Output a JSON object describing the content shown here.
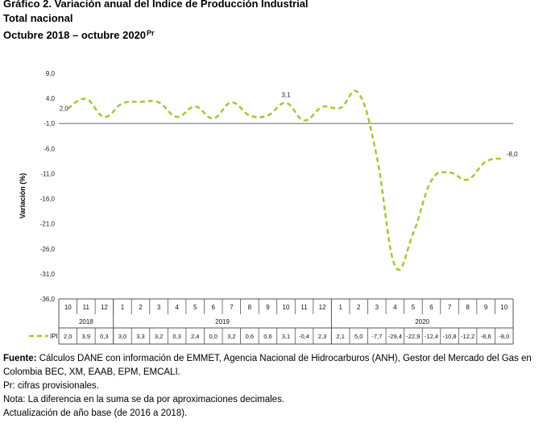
{
  "header": {
    "title": "Gráfico 2. Variación anual del Índice de Producción Industrial",
    "subtitle": "Total nacional",
    "period": "Octubre 2018 – octubre 2020",
    "period_sup": "Pr"
  },
  "chart_data": {
    "type": "line",
    "ylabel": "Variación (%)",
    "ylim": [
      -36.0,
      9.0
    ],
    "yticks": [
      "9,0",
      "4,0",
      "-1,0",
      "-6,0",
      "-11,0",
      "-16,0",
      "-21,0",
      "-26,0",
      "-31,0",
      "-36,0"
    ],
    "ytick_values": [
      9,
      4,
      -1,
      -6,
      -11,
      -16,
      -21,
      -26,
      -31,
      -36
    ],
    "baseline_value": -1.0,
    "categories": [
      "10",
      "11",
      "12",
      "1",
      "2",
      "3",
      "4",
      "5",
      "6",
      "7",
      "8",
      "9",
      "10",
      "11",
      "12",
      "1",
      "2",
      "3",
      "4",
      "5",
      "6",
      "7",
      "8",
      "9",
      "10"
    ],
    "years": [
      {
        "label": "2018",
        "count": 3
      },
      {
        "label": "2019",
        "count": 12
      },
      {
        "label": "2020",
        "count": 10
      }
    ],
    "series": [
      {
        "name": "IPI",
        "color": "#9acd32",
        "style": "dashed",
        "values": [
          2.0,
          3.9,
          0.3,
          3.0,
          3.3,
          3.2,
          0.3,
          2.4,
          0.0,
          3.2,
          0.6,
          0.6,
          3.1,
          -0.4,
          2.3,
          2.1,
          5.0,
          -7.7,
          -29.4,
          -22.9,
          -12.4,
          -10.8,
          -12.2,
          -8.6,
          -8.0
        ],
        "value_labels": [
          "2,0",
          "3,9",
          "0,3",
          "3,0",
          "3,3",
          "3,2",
          "0,3",
          "2,4",
          "0,0",
          "3,2",
          "0,6",
          "0,6",
          "3,1",
          "-0,4",
          "2,3",
          "2,1",
          "5,0",
          "-7,7",
          "-29,4",
          "-22,9",
          "-12,4",
          "-10,8",
          "-12,2",
          "-8,6",
          "-8,0"
        ]
      }
    ],
    "annotations": [
      {
        "index": 0,
        "text": "2,0"
      },
      {
        "index": 12,
        "text": "3,1"
      },
      {
        "index": 24,
        "text": "-8,0"
      }
    ]
  },
  "notes": {
    "source_label": "Fuente:",
    "source_text": " Cálculos DANE con información de EMMET, Agencia Nacional de Hidrocarburos (ANH), Gestor del Mercado del Gas en Colombia BEC, XM, EAAB, EPM, EMCALI.",
    "pr_note": "Pr: cifras provisionales.",
    "diff_note": "Nota: La diferencia en la suma se da por aproximaciones decimales.",
    "base_note": "Actualización de año base (de 2016 a 2018)."
  }
}
